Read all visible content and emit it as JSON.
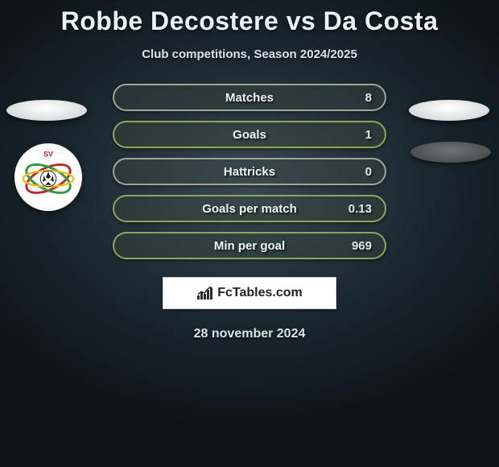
{
  "title": "Robbe Decostere vs Da Costa",
  "subtitle": "Club competitions, Season 2024/2025",
  "date": "28 november 2024",
  "colors": {
    "bg_center": "#3a4a52",
    "bg_outer": "#0d1518",
    "text": "#e8f4f8",
    "shadow": "rgba(0,0,0,0.6)",
    "border_light": "#9ea89a",
    "border_green": "#8aa858",
    "white": "#ffffff"
  },
  "stats": [
    {
      "label": "Matches",
      "value": "8",
      "border": "#9ea89a",
      "bg": "rgba(60,72,68,0.4)"
    },
    {
      "label": "Goals",
      "value": "1",
      "border": "#8aa858",
      "bg": "rgba(60,72,62,0.4)"
    },
    {
      "label": "Hattricks",
      "value": "0",
      "border": "#9ea89a",
      "bg": "rgba(60,72,68,0.4)"
    },
    {
      "label": "Goals per match",
      "value": "0.13",
      "border": "#8aa858",
      "bg": "rgba(60,72,62,0.4)"
    },
    {
      "label": "Min per goal",
      "value": "969",
      "border": "#8aa858",
      "bg": "rgba(60,72,62,0.4)"
    }
  ],
  "watermark": {
    "text": "FcTables.com",
    "icon": "bar-chart-icon"
  },
  "side_elements": {
    "top_left_pill": "light",
    "top_right_pill": "light",
    "bottom_right_pill": "dark",
    "club_badge_text": "SV",
    "club_badge_name": "SV ZULTE WAREGEM"
  }
}
